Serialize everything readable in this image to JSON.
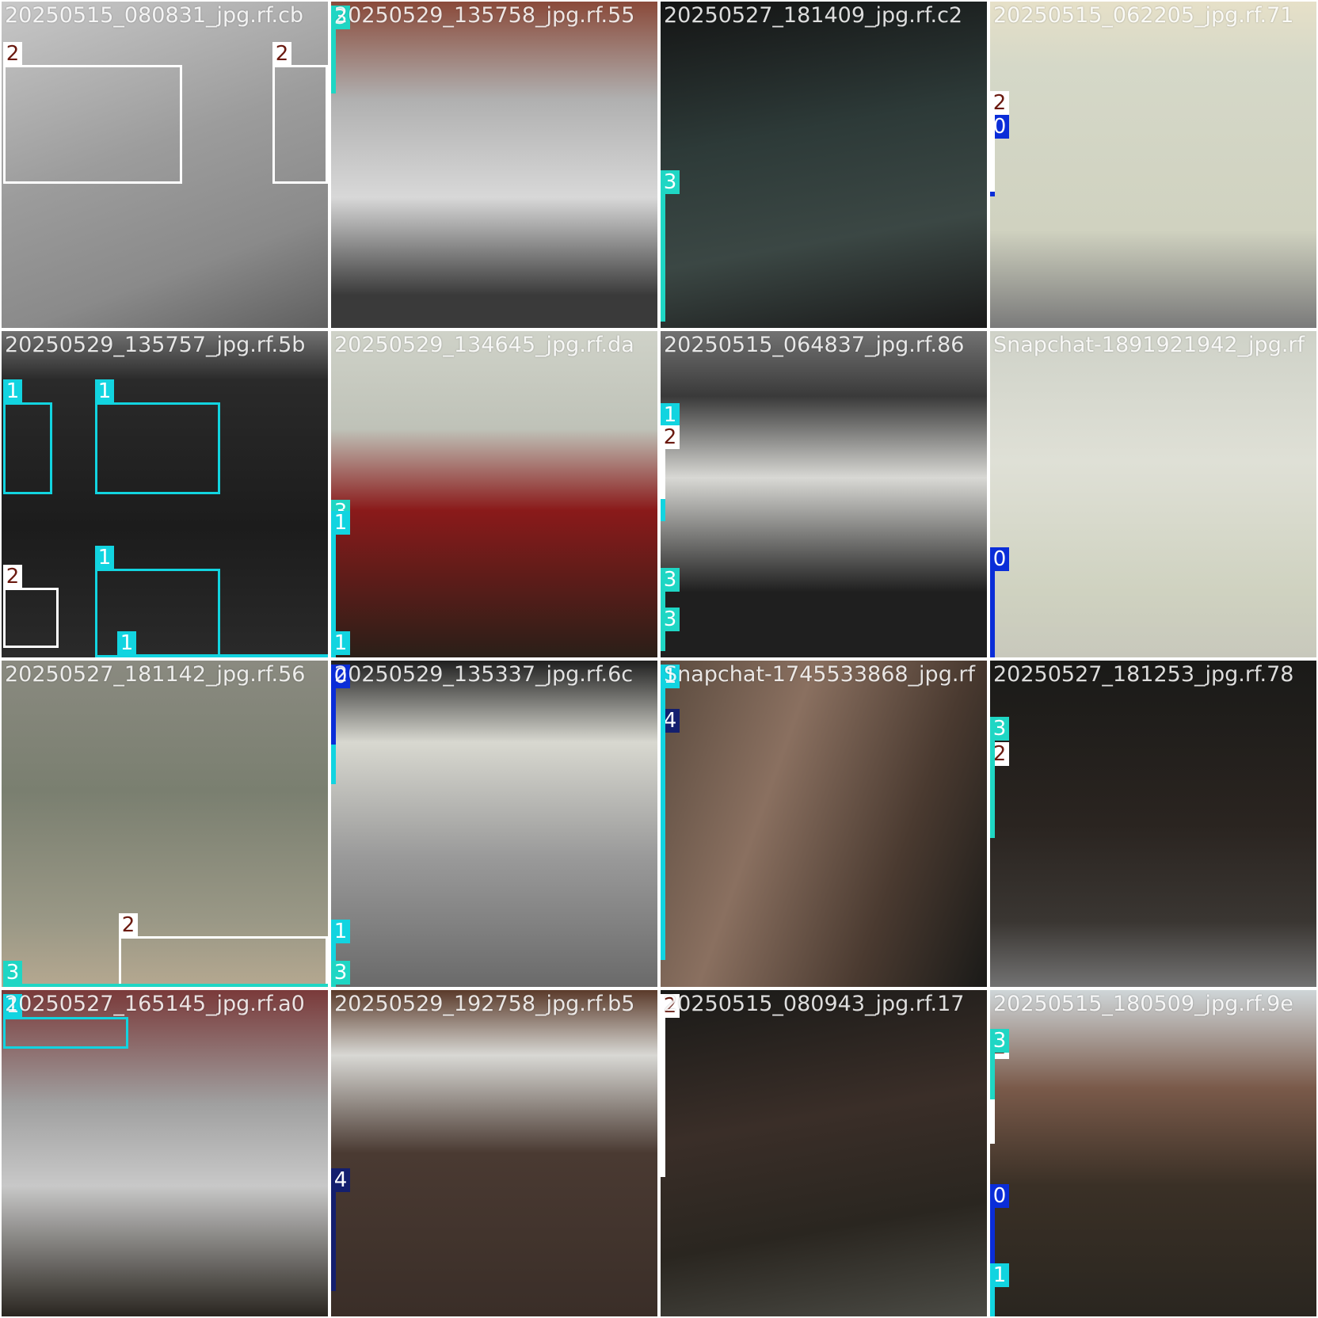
{
  "colors": {
    "0": "#0a2dd8",
    "1": "#12d4e0",
    "2": "#ffffff",
    "3": "#1fd6c4",
    "4": "#141f6e",
    "label_text_dark": "#6b1a10",
    "label_text_light": "#ffffff"
  },
  "tiles": [
    {
      "filename": "20250515_080831_jpg.rf.cb",
      "boxes": [
        {
          "cls": "2"
        },
        {
          "cls": "2"
        }
      ]
    },
    {
      "filename": "20250529_135758_jpg.rf.55",
      "boxes": [
        {
          "cls": "3"
        }
      ]
    },
    {
      "filename": "20250527_181409_jpg.rf.c2",
      "boxes": [
        {
          "cls": "3"
        }
      ]
    },
    {
      "filename": "20250515_062205_jpg.rf.71",
      "boxes": [
        {
          "cls": "0"
        },
        {
          "cls": "2"
        }
      ]
    },
    {
      "filename": "20250529_135757_jpg.rf.5b",
      "boxes": [
        {
          "cls": "1"
        },
        {
          "cls": "1"
        },
        {
          "cls": "2"
        },
        {
          "cls": "1"
        },
        {
          "cls": "1"
        }
      ]
    },
    {
      "filename": "20250529_134645_jpg.rf.da",
      "boxes": [
        {
          "cls": "3"
        },
        {
          "cls": "1"
        },
        {
          "cls": "1"
        }
      ]
    },
    {
      "filename": "20250515_064837_jpg.rf.86",
      "boxes": [
        {
          "cls": "1"
        },
        {
          "cls": "2"
        },
        {
          "cls": "3"
        },
        {
          "cls": "3"
        }
      ]
    },
    {
      "filename": "Snapchat-1891921942_jpg.rf",
      "boxes": [
        {
          "cls": "0"
        }
      ]
    },
    {
      "filename": "20250527_181142_jpg.rf.56",
      "boxes": [
        {
          "cls": "2"
        },
        {
          "cls": "3"
        }
      ]
    },
    {
      "filename": "20250529_135337_jpg.rf.6c",
      "boxes": [
        {
          "cls": "1"
        },
        {
          "cls": "0"
        },
        {
          "cls": "1"
        },
        {
          "cls": "3"
        },
        {
          "cls": "3"
        }
      ]
    },
    {
      "filename": "Snapchat-1745533868_jpg.rf",
      "boxes": [
        {
          "cls": "4"
        },
        {
          "cls": "1"
        }
      ]
    },
    {
      "filename": "20250527_181253_jpg.rf.78",
      "boxes": [
        {
          "cls": "2"
        },
        {
          "cls": "3"
        }
      ]
    },
    {
      "filename": "20250527_165145_jpg.rf.a0",
      "boxes": [
        {
          "cls": "1"
        }
      ]
    },
    {
      "filename": "20250529_192758_jpg.rf.b5",
      "boxes": [
        {
          "cls": "4"
        },
        {
          "cls": "4"
        }
      ]
    },
    {
      "filename": "20250515_080943_jpg.rf.17",
      "boxes": [
        {
          "cls": "2"
        }
      ]
    },
    {
      "filename": "20250515_180509_jpg.rf.9e",
      "boxes": [
        {
          "cls": "2"
        },
        {
          "cls": "3"
        },
        {
          "cls": "0"
        },
        {
          "cls": "1"
        }
      ]
    }
  ]
}
